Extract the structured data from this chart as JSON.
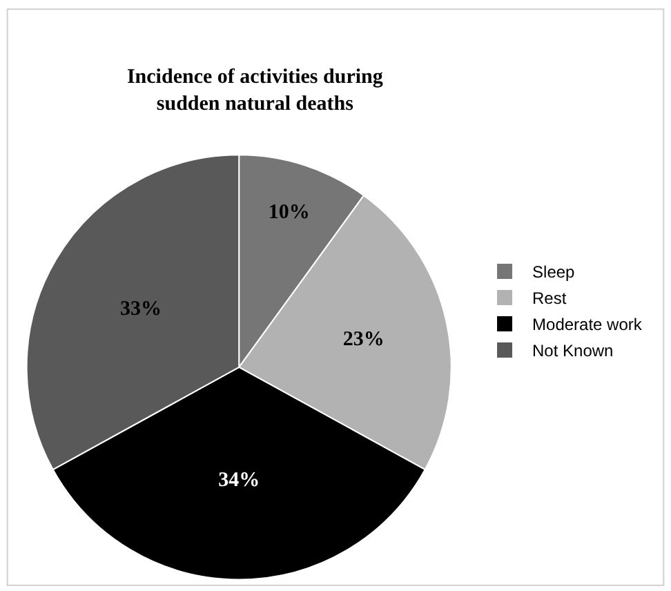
{
  "chart_data": {
    "type": "pie",
    "title": "Incidence of activities during sudden natural deaths",
    "categories": [
      "Sleep",
      "Rest",
      "Moderate work",
      "Not Known"
    ],
    "values": [
      10,
      23,
      34,
      33
    ],
    "colors": [
      "#767676",
      "#b2b2b2",
      "#000000",
      "#595959"
    ],
    "value_labels": [
      "10%",
      "23%",
      "34%",
      "33%"
    ],
    "legend": "right"
  }
}
